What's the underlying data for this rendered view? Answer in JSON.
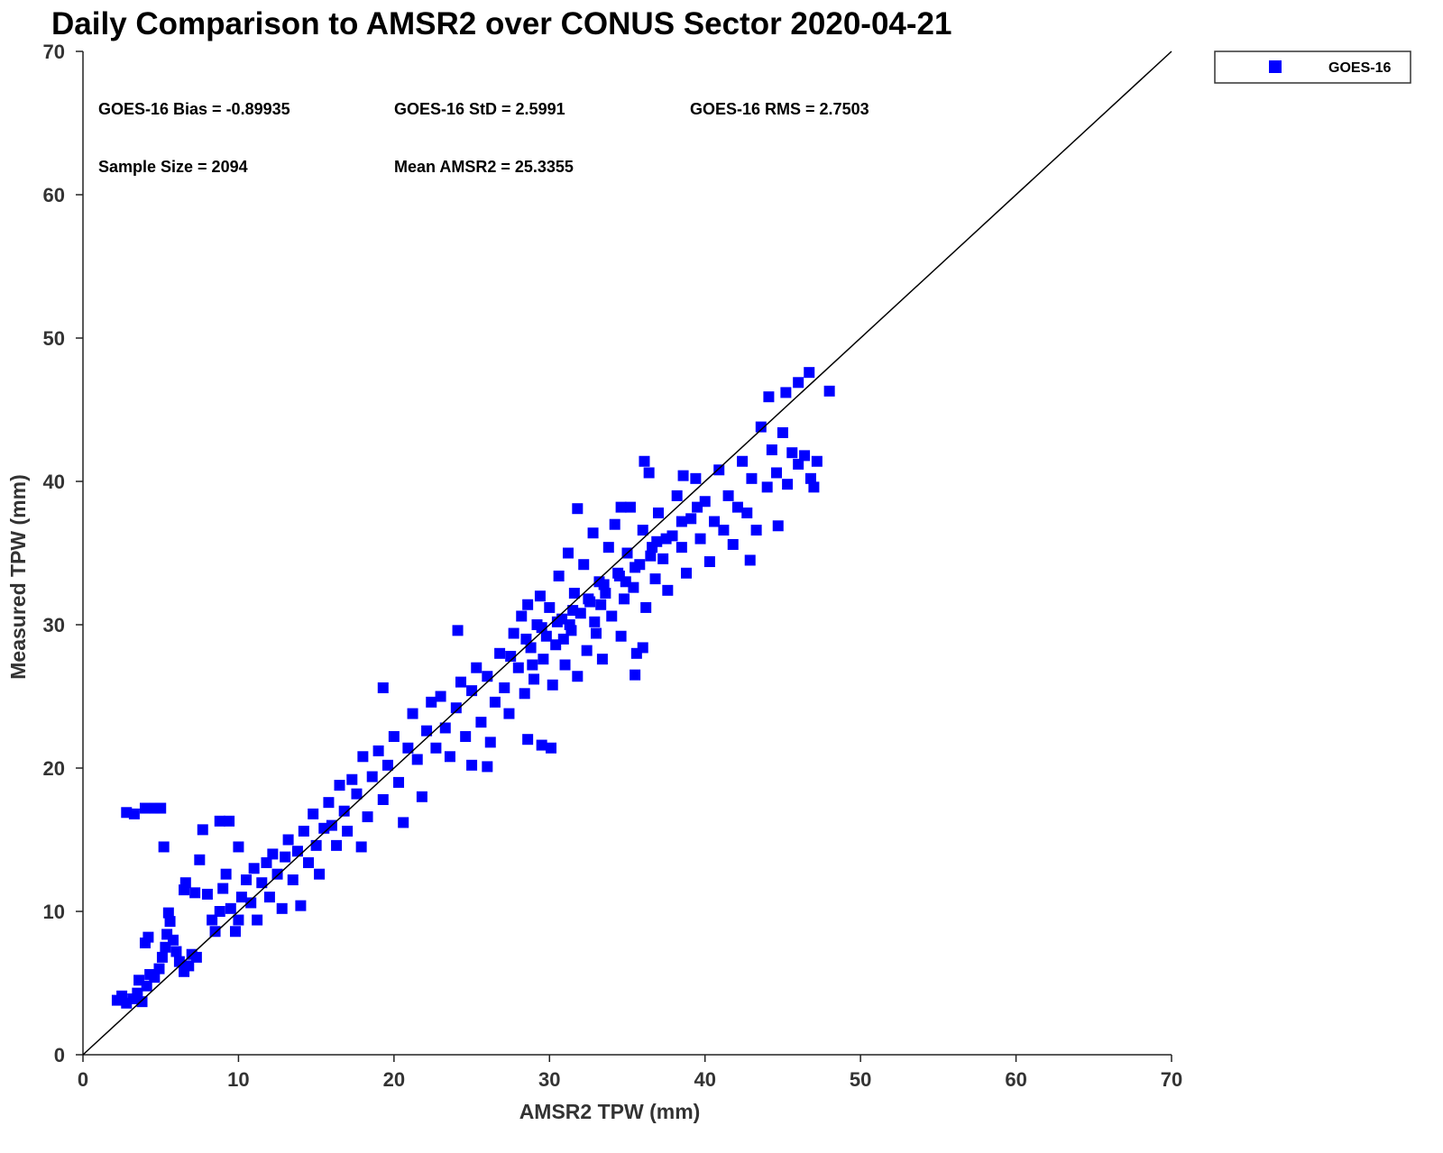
{
  "chart_data": {
    "type": "scatter",
    "title": "Daily Comparison to AMSR2 over CONUS Sector 2020-04-21",
    "xlabel": "AMSR2 TPW (mm)",
    "ylabel": "Measured TPW (mm)",
    "xlim": [
      0,
      70
    ],
    "ylim": [
      0,
      70
    ],
    "xticks": [
      0,
      10,
      20,
      30,
      40,
      50,
      60,
      70
    ],
    "yticks": [
      0,
      10,
      20,
      30,
      40,
      50,
      60,
      70
    ],
    "grid": false,
    "legend_position": "top-right, outside plot",
    "reference_line": "y = x",
    "stats": {
      "bias": "GOES-16 Bias = -0.89935",
      "std": "GOES-16 StD = 2.5991",
      "rms": "GOES-16 RMS = 2.7503",
      "sample_size": "Sample Size = 2094",
      "mean": "Mean AMSR2 = 25.3355"
    },
    "series": [
      {
        "name": "GOES-16",
        "color": "#0000ff",
        "marker": "square",
        "points": [
          [
            2.2,
            3.8
          ],
          [
            2.5,
            4.1
          ],
          [
            2.8,
            3.6
          ],
          [
            3.2,
            3.9
          ],
          [
            3.5,
            4.3
          ],
          [
            3.8,
            3.7
          ],
          [
            4.1,
            4.8
          ],
          [
            4.3,
            5.6
          ],
          [
            3.6,
            5.2
          ],
          [
            4.0,
            7.8
          ],
          [
            4.2,
            8.2
          ],
          [
            4.6,
            5.4
          ],
          [
            4.9,
            6.0
          ],
          [
            5.1,
            6.8
          ],
          [
            5.3,
            7.5
          ],
          [
            5.4,
            8.4
          ],
          [
            5.6,
            9.3
          ],
          [
            5.5,
            9.9
          ],
          [
            5.8,
            8.0
          ],
          [
            6.0,
            7.2
          ],
          [
            6.2,
            6.5
          ],
          [
            6.5,
            5.8
          ],
          [
            6.8,
            6.2
          ],
          [
            7.0,
            7.0
          ],
          [
            7.3,
            6.8
          ],
          [
            6.5,
            11.5
          ],
          [
            6.6,
            12.0
          ],
          [
            7.2,
            11.3
          ],
          [
            7.5,
            13.6
          ],
          [
            8.0,
            11.2
          ],
          [
            8.3,
            9.4
          ],
          [
            8.5,
            8.6
          ],
          [
            8.8,
            10.0
          ],
          [
            9.0,
            11.6
          ],
          [
            9.2,
            12.6
          ],
          [
            9.5,
            10.2
          ],
          [
            9.8,
            8.6
          ],
          [
            10.0,
            9.4
          ],
          [
            10.2,
            11.0
          ],
          [
            10.5,
            12.2
          ],
          [
            10.8,
            10.6
          ],
          [
            11.0,
            13.0
          ],
          [
            11.2,
            9.4
          ],
          [
            11.5,
            12.0
          ],
          [
            11.8,
            13.4
          ],
          [
            12.0,
            11.0
          ],
          [
            12.2,
            14.0
          ],
          [
            12.5,
            12.6
          ],
          [
            12.8,
            10.2
          ],
          [
            13.0,
            13.8
          ],
          [
            13.2,
            15.0
          ],
          [
            13.5,
            12.2
          ],
          [
            13.8,
            14.2
          ],
          [
            14.0,
            10.4
          ],
          [
            14.2,
            15.6
          ],
          [
            14.5,
            13.4
          ],
          [
            14.8,
            16.8
          ],
          [
            15.0,
            14.6
          ],
          [
            15.2,
            12.6
          ],
          [
            15.5,
            15.8
          ],
          [
            15.8,
            17.6
          ],
          [
            16.0,
            16.0
          ],
          [
            16.3,
            14.6
          ],
          [
            16.5,
            18.8
          ],
          [
            16.8,
            17.0
          ],
          [
            17.0,
            15.6
          ],
          [
            17.3,
            19.2
          ],
          [
            17.6,
            18.2
          ],
          [
            18.0,
            20.8
          ],
          [
            18.3,
            16.6
          ],
          [
            18.6,
            19.4
          ],
          [
            19.0,
            21.2
          ],
          [
            19.3,
            17.8
          ],
          [
            19.6,
            20.2
          ],
          [
            20.0,
            22.2
          ],
          [
            20.3,
            19.0
          ],
          [
            20.6,
            16.2
          ],
          [
            20.9,
            21.4
          ],
          [
            21.2,
            23.8
          ],
          [
            21.5,
            20.6
          ],
          [
            21.8,
            18.0
          ],
          [
            22.1,
            22.6
          ],
          [
            22.4,
            24.6
          ],
          [
            22.7,
            21.4
          ],
          [
            23.0,
            25.0
          ],
          [
            23.3,
            22.8
          ],
          [
            23.6,
            20.8
          ],
          [
            24.0,
            24.2
          ],
          [
            24.3,
            26.0
          ],
          [
            24.6,
            22.2
          ],
          [
            25.0,
            25.4
          ],
          [
            25.3,
            27.0
          ],
          [
            25.6,
            23.2
          ],
          [
            26.0,
            26.4
          ],
          [
            26.2,
            21.8
          ],
          [
            26.5,
            24.6
          ],
          [
            26.8,
            28.0
          ],
          [
            27.1,
            25.6
          ],
          [
            27.4,
            23.8
          ],
          [
            27.7,
            29.4
          ],
          [
            28.0,
            27.0
          ],
          [
            28.2,
            30.6
          ],
          [
            28.4,
            25.2
          ],
          [
            28.6,
            31.4
          ],
          [
            28.8,
            28.4
          ],
          [
            29.0,
            26.2
          ],
          [
            29.2,
            30.0
          ],
          [
            29.4,
            32.0
          ],
          [
            29.6,
            27.6
          ],
          [
            29.8,
            29.2
          ],
          [
            30.0,
            31.2
          ],
          [
            30.2,
            25.8
          ],
          [
            30.4,
            28.6
          ],
          [
            30.6,
            33.4
          ],
          [
            30.8,
            30.4
          ],
          [
            31.0,
            27.2
          ],
          [
            31.2,
            35.0
          ],
          [
            31.4,
            29.6
          ],
          [
            31.6,
            32.2
          ],
          [
            31.8,
            26.4
          ],
          [
            32.0,
            30.8
          ],
          [
            32.2,
            34.2
          ],
          [
            32.4,
            28.2
          ],
          [
            32.6,
            31.6
          ],
          [
            32.8,
            36.4
          ],
          [
            33.0,
            29.4
          ],
          [
            33.2,
            33.0
          ],
          [
            33.4,
            27.6
          ],
          [
            33.6,
            32.2
          ],
          [
            33.8,
            35.4
          ],
          [
            34.0,
            30.6
          ],
          [
            34.2,
            37.0
          ],
          [
            34.4,
            33.6
          ],
          [
            34.6,
            29.2
          ],
          [
            34.8,
            31.8
          ],
          [
            35.0,
            35.0
          ],
          [
            35.2,
            38.2
          ],
          [
            35.4,
            32.6
          ],
          [
            35.6,
            28.0
          ],
          [
            35.8,
            34.2
          ],
          [
            36.0,
            36.6
          ],
          [
            36.2,
            31.2
          ],
          [
            36.4,
            40.6
          ],
          [
            36.6,
            35.4
          ],
          [
            36.8,
            33.2
          ],
          [
            37.0,
            37.8
          ],
          [
            37.3,
            34.6
          ],
          [
            37.6,
            32.4
          ],
          [
            37.9,
            36.2
          ],
          [
            38.2,
            39.0
          ],
          [
            38.5,
            35.4
          ],
          [
            38.8,
            33.6
          ],
          [
            39.1,
            37.4
          ],
          [
            39.4,
            40.2
          ],
          [
            39.7,
            36.0
          ],
          [
            40.0,
            38.6
          ],
          [
            40.3,
            34.4
          ],
          [
            40.6,
            37.2
          ],
          [
            40.9,
            40.8
          ],
          [
            41.2,
            36.6
          ],
          [
            41.5,
            39.0
          ],
          [
            41.8,
            35.6
          ],
          [
            42.1,
            38.2
          ],
          [
            42.4,
            41.4
          ],
          [
            42.7,
            37.8
          ],
          [
            43.0,
            40.2
          ],
          [
            43.3,
            36.6
          ],
          [
            43.6,
            43.8
          ],
          [
            44.0,
            39.6
          ],
          [
            44.3,
            42.2
          ],
          [
            44.6,
            40.6
          ],
          [
            45.0,
            43.4
          ],
          [
            45.3,
            39.8
          ],
          [
            45.6,
            42.0
          ],
          [
            46.0,
            41.2
          ],
          [
            46.4,
            41.8
          ],
          [
            46.8,
            40.2
          ],
          [
            47.2,
            41.4
          ],
          [
            47.0,
            39.6
          ],
          [
            28.5,
            29.0
          ],
          [
            29.5,
            29.8
          ],
          [
            30.5,
            30.2
          ],
          [
            31.5,
            31.0
          ],
          [
            32.5,
            31.8
          ],
          [
            33.5,
            32.8
          ],
          [
            34.5,
            33.4
          ],
          [
            35.5,
            34.0
          ],
          [
            36.5,
            34.8
          ],
          [
            37.5,
            36.0
          ],
          [
            38.5,
            37.2
          ],
          [
            39.5,
            38.2
          ],
          [
            27.5,
            27.8
          ],
          [
            28.9,
            27.2
          ],
          [
            30.9,
            29.0
          ],
          [
            32.9,
            30.2
          ],
          [
            34.9,
            33.0
          ],
          [
            36.9,
            35.8
          ],
          [
            31.3,
            30.0
          ],
          [
            33.3,
            31.4
          ],
          [
            2.8,
            16.9
          ],
          [
            3.3,
            16.8
          ],
          [
            4.0,
            17.2
          ],
          [
            4.6,
            17.2
          ],
          [
            5.0,
            17.2
          ],
          [
            5.2,
            14.5
          ],
          [
            7.7,
            15.7
          ],
          [
            8.8,
            16.3
          ],
          [
            9.4,
            16.3
          ],
          [
            30.1,
            21.4
          ],
          [
            29.5,
            21.6
          ],
          [
            28.6,
            22.0
          ],
          [
            24.1,
            29.6
          ],
          [
            19.3,
            25.6
          ],
          [
            46.7,
            47.6
          ],
          [
            48.0,
            46.3
          ],
          [
            44.1,
            45.9
          ],
          [
            46.0,
            46.9
          ],
          [
            45.2,
            46.2
          ],
          [
            42.9,
            34.5
          ],
          [
            44.7,
            36.9
          ],
          [
            31.8,
            38.1
          ],
          [
            34.6,
            38.2
          ],
          [
            36.1,
            41.4
          ],
          [
            38.6,
            40.4
          ],
          [
            35.5,
            26.5
          ],
          [
            36.0,
            28.4
          ],
          [
            17.9,
            14.5
          ],
          [
            10.0,
            14.5
          ],
          [
            26.0,
            20.1
          ],
          [
            25.0,
            20.2
          ]
        ]
      }
    ]
  }
}
